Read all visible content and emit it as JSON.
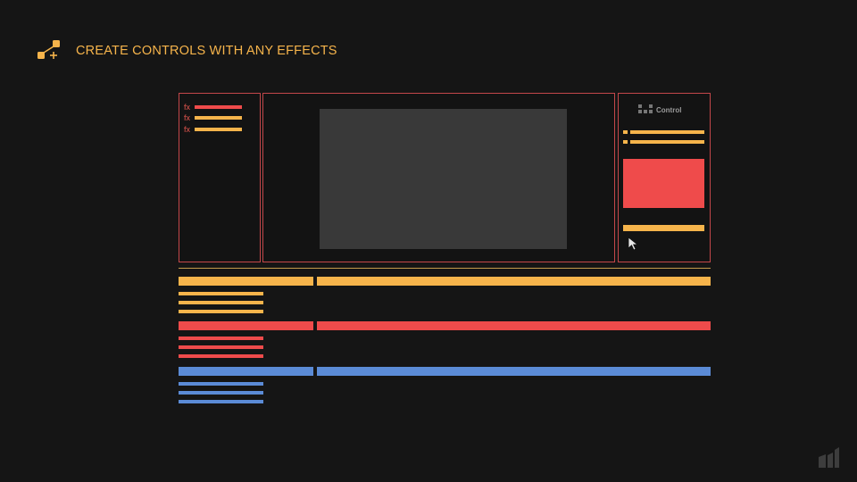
{
  "header": {
    "title": "CREATE CONTROLS WITH ANY EFFECTS",
    "logo_icon": "nodes-plus-icon"
  },
  "colors": {
    "background": "#151515",
    "accent_orange": "#f6b44b",
    "accent_red": "#ef4b4b",
    "accent_blue": "#5b8bd6",
    "panel_border": "#c4474a",
    "preview_gray": "#393939"
  },
  "effects_panel": {
    "items": [
      {
        "label": "fx",
        "color": "red"
      },
      {
        "label": "fx",
        "color": "orange"
      },
      {
        "label": "fx",
        "color": "orange"
      }
    ]
  },
  "viewer_panel": {
    "preview": "preview-area"
  },
  "controls_panel": {
    "logo_text": "Control",
    "logo_suffix": "",
    "cursor_icon": "mouse-pointer-icon"
  },
  "timeline": {
    "layers": [
      {
        "color": "orange",
        "sub_items": 3
      },
      {
        "color": "red",
        "sub_items": 3
      },
      {
        "color": "blue",
        "sub_items": 3
      }
    ]
  },
  "footer": {
    "brand_icon": "brand-mark-icon"
  }
}
